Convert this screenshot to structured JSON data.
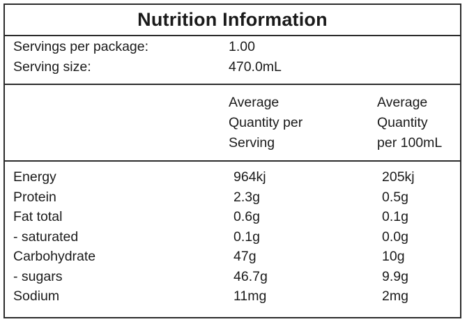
{
  "title": "Nutrition Information",
  "servings": {
    "per_package_label": "Servings per package:",
    "per_package_value": "1.00",
    "size_label": "Serving size:",
    "size_value": "470.0mL"
  },
  "columns": {
    "per_serving": "Average\nQuantity per\nServing",
    "per_100ml": "Average\nQuantity\nper 100mL"
  },
  "rows": [
    {
      "name": "Energy",
      "per_serving": "964kj",
      "per_100ml": "205kj"
    },
    {
      "name": "Protein",
      "per_serving": "2.3g",
      "per_100ml": "0.5g"
    },
    {
      "name": "Fat total",
      "per_serving": "0.6g",
      "per_100ml": "0.1g"
    },
    {
      "name": "- saturated",
      "per_serving": "0.1g",
      "per_100ml": "0.0g"
    },
    {
      "name": "Carbohydrate",
      "per_serving": "47g",
      "per_100ml": "10g"
    },
    {
      "name": "- sugars",
      "per_serving": "46.7g",
      "per_100ml": "9.9g"
    },
    {
      "name": "Sodium",
      "per_serving": "11mg",
      "per_100ml": "2mg"
    }
  ]
}
